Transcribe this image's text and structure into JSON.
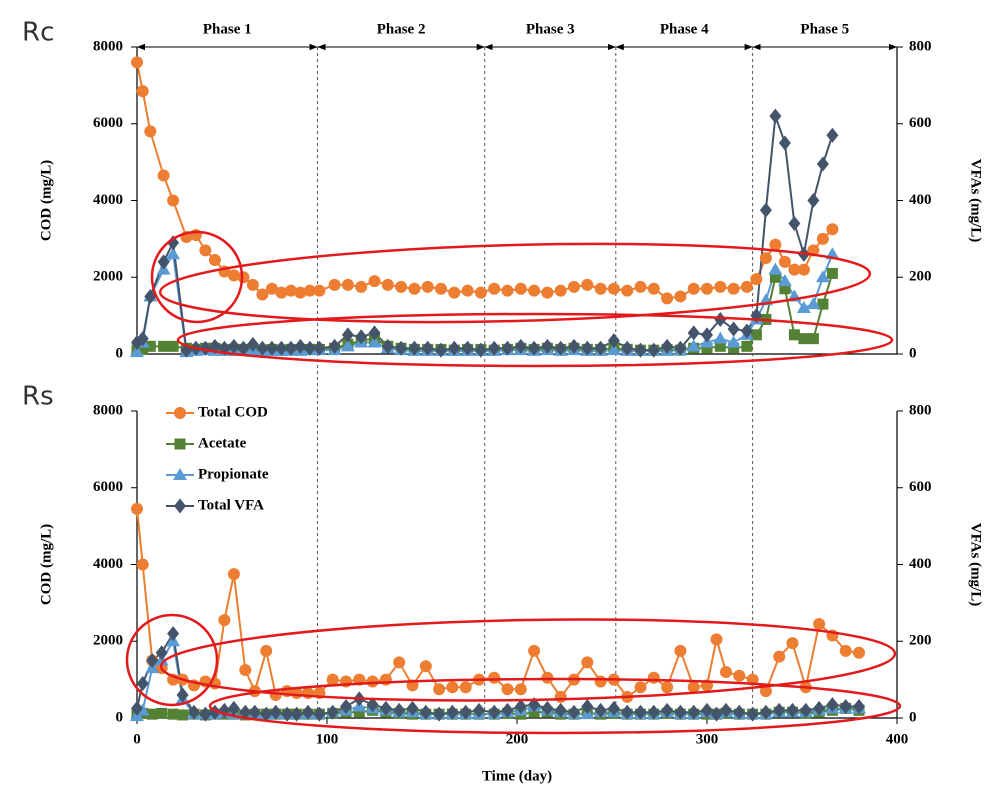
{
  "chart_data": [
    {
      "type": "line",
      "title": "Rc",
      "ylabel": "COD (mg/L)",
      "y2label": "VFAs (mg/L)",
      "xlim": [
        0,
        400
      ],
      "ylim": [
        0,
        8000
      ],
      "yticks": [
        0,
        2000,
        4000,
        6000,
        8000
      ],
      "y2lim": [
        0,
        800
      ],
      "y2ticks": [
        0,
        200,
        400,
        600,
        800
      ],
      "phases": [
        {
          "label": "Phase 1",
          "start": 0,
          "end": 95
        },
        {
          "label": "Phase 2",
          "start": 95,
          "end": 183
        },
        {
          "label": "Phase 3",
          "start": 183,
          "end": 252
        },
        {
          "label": "Phase 4",
          "start": 252,
          "end": 324
        },
        {
          "label": "Phase 5",
          "start": 324,
          "end": 400
        }
      ],
      "x": [
        0,
        3,
        7,
        14,
        19,
        26,
        31,
        36,
        41,
        46,
        51,
        56,
        61,
        66,
        71,
        76,
        81,
        86,
        91,
        96,
        104,
        111,
        118,
        125,
        132,
        139,
        146,
        153,
        160,
        167,
        174,
        181,
        188,
        195,
        202,
        209,
        216,
        223,
        230,
        237,
        244,
        251,
        258,
        265,
        272,
        279,
        286,
        293,
        300,
        307,
        314,
        321,
        326,
        331,
        336,
        341,
        346,
        351,
        356,
        361,
        366
      ],
      "series": [
        {
          "name": "Total COD",
          "color": "#ED7D31",
          "marker": "circle",
          "values": [
            7600,
            6850,
            5800,
            4650,
            4000,
            3050,
            3100,
            2700,
            2450,
            2150,
            2050,
            2000,
            1800,
            1550,
            1700,
            1600,
            1650,
            1600,
            1650,
            1650,
            1800,
            1800,
            1750,
            1900,
            1800,
            1750,
            1700,
            1750,
            1700,
            1600,
            1650,
            1600,
            1700,
            1650,
            1700,
            1650,
            1600,
            1650,
            1750,
            1800,
            1700,
            1700,
            1650,
            1750,
            1700,
            1450,
            1500,
            1700,
            1700,
            1750,
            1700,
            1750,
            1950,
            2500,
            2850,
            2400,
            2200,
            2200,
            2700,
            3000,
            3250
          ]
        },
        {
          "name": "Acetate",
          "color": "#548235",
          "marker": "square",
          "axis": "y2",
          "values": [
            10,
            12,
            20,
            20,
            20,
            15,
            12,
            15,
            15,
            12,
            12,
            12,
            12,
            10,
            12,
            10,
            12,
            10,
            12,
            12,
            15,
            25,
            35,
            40,
            20,
            15,
            12,
            12,
            12,
            10,
            12,
            12,
            10,
            12,
            15,
            12,
            15,
            12,
            15,
            12,
            12,
            15,
            12,
            10,
            10,
            12,
            10,
            15,
            15,
            20,
            15,
            20,
            50,
            90,
            200,
            170,
            50,
            40,
            40,
            130,
            210
          ]
        },
        {
          "name": "Propionate",
          "color": "#5B9BD5",
          "marker": "triangle",
          "axis": "y2",
          "values": [
            5,
            30,
            150,
            220,
            260,
            5,
            8,
            10,
            8,
            8,
            8,
            8,
            10,
            8,
            8,
            8,
            8,
            8,
            10,
            10,
            10,
            20,
            30,
            30,
            15,
            10,
            8,
            8,
            8,
            8,
            8,
            8,
            8,
            10,
            10,
            8,
            10,
            8,
            10,
            8,
            8,
            10,
            8,
            8,
            8,
            8,
            10,
            20,
            30,
            40,
            30,
            50,
            90,
            140,
            220,
            190,
            150,
            120,
            130,
            200,
            260
          ]
        },
        {
          "name": "Total VFA",
          "color": "#44546A",
          "marker": "diamond",
          "axis": "y2",
          "values": [
            30,
            40,
            150,
            240,
            290,
            10,
            15,
            15,
            20,
            15,
            20,
            15,
            25,
            15,
            15,
            15,
            15,
            20,
            15,
            15,
            20,
            50,
            45,
            55,
            20,
            15,
            15,
            15,
            10,
            15,
            15,
            10,
            15,
            15,
            20,
            15,
            20,
            15,
            20,
            15,
            15,
            35,
            15,
            10,
            10,
            20,
            15,
            55,
            50,
            90,
            65,
            60,
            100,
            375,
            620,
            550,
            340,
            260,
            400,
            495,
            570
          ]
        }
      ]
    },
    {
      "type": "line",
      "title": "Rs",
      "ylabel": "COD (mg/L)",
      "y2label": "VFAs (mg/L)",
      "xlabel": "Time (day)",
      "legend": "upper left",
      "xlim": [
        0,
        400
      ],
      "xticks": [
        0,
        100,
        200,
        300,
        400
      ],
      "ylim": [
        0,
        8000
      ],
      "yticks": [
        0,
        2000,
        4000,
        6000,
        8000
      ],
      "y2lim": [
        0,
        800
      ],
      "y2ticks": [
        0,
        200,
        400,
        600,
        800
      ],
      "x": [
        0,
        3,
        8,
        13,
        19,
        24,
        30,
        36,
        41,
        46,
        51,
        57,
        62,
        68,
        73,
        79,
        84,
        90,
        96,
        103,
        110,
        117,
        124,
        131,
        138,
        145,
        152,
        159,
        166,
        173,
        180,
        188,
        195,
        202,
        209,
        216,
        223,
        230,
        237,
        244,
        251,
        258,
        265,
        272,
        279,
        286,
        293,
        300,
        305,
        310,
        317,
        324,
        331,
        338,
        345,
        352,
        359,
        366,
        373,
        380
      ],
      "series": [
        {
          "name": "Total COD",
          "color": "#ED7D31",
          "marker": "circle",
          "values": [
            5450,
            4000,
            1500,
            1300,
            1000,
            1000,
            850,
            950,
            900,
            2550,
            3750,
            1250,
            700,
            1750,
            600,
            700,
            650,
            650,
            650,
            1000,
            950,
            1000,
            950,
            1000,
            1450,
            850,
            1350,
            750,
            800,
            800,
            1000,
            1050,
            750,
            750,
            1750,
            1050,
            550,
            1000,
            1450,
            950,
            1000,
            550,
            800,
            1050,
            800,
            1750,
            800,
            850,
            2050,
            1200,
            1100,
            1000,
            700,
            1600,
            1950,
            800,
            2450,
            2150,
            1750,
            1700
          ]
        },
        {
          "name": "Acetate",
          "color": "#548235",
          "marker": "square",
          "axis": "y2",
          "values": [
            10,
            12,
            10,
            12,
            10,
            8,
            10,
            8,
            10,
            10,
            10,
            8,
            10,
            10,
            10,
            10,
            10,
            10,
            10,
            12,
            15,
            15,
            20,
            15,
            12,
            10,
            10,
            10,
            10,
            10,
            10,
            10,
            12,
            10,
            15,
            15,
            10,
            10,
            12,
            10,
            12,
            10,
            10,
            10,
            12,
            10,
            10,
            10,
            10,
            12,
            10,
            10,
            10,
            15,
            15,
            12,
            15,
            20,
            25,
            20
          ]
        },
        {
          "name": "Propionate",
          "color": "#5B9BD5",
          "marker": "triangle",
          "axis": "y2",
          "values": [
            5,
            20,
            130,
            150,
            200,
            50,
            10,
            10,
            10,
            15,
            10,
            10,
            10,
            10,
            10,
            10,
            10,
            10,
            10,
            15,
            20,
            30,
            25,
            20,
            15,
            15,
            10,
            10,
            10,
            10,
            10,
            10,
            15,
            20,
            30,
            20,
            15,
            10,
            10,
            15,
            15,
            10,
            10,
            10,
            15,
            10,
            10,
            15,
            10,
            15,
            10,
            10,
            10,
            15,
            15,
            15,
            20,
            25,
            25,
            25
          ]
        },
        {
          "name": "Total VFA",
          "color": "#44546A",
          "marker": "diamond",
          "axis": "y2",
          "values": [
            25,
            90,
            150,
            170,
            220,
            60,
            15,
            10,
            15,
            20,
            25,
            15,
            15,
            10,
            15,
            10,
            10,
            15,
            10,
            15,
            30,
            50,
            35,
            25,
            20,
            25,
            15,
            10,
            15,
            15,
            20,
            15,
            20,
            30,
            35,
            25,
            20,
            15,
            30,
            20,
            25,
            15,
            15,
            15,
            20,
            15,
            15,
            20,
            10,
            20,
            15,
            10,
            15,
            20,
            20,
            20,
            25,
            35,
            30,
            30
          ]
        }
      ]
    }
  ]
}
